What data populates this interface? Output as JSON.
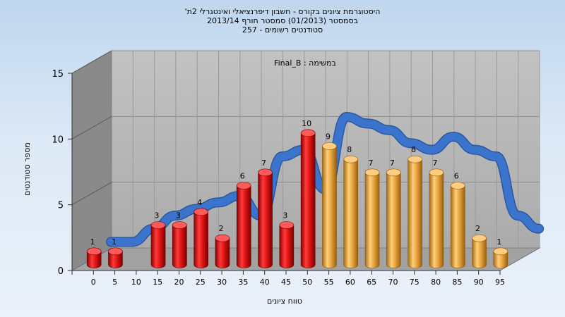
{
  "chart_data": {
    "type": "bar",
    "title_lines": [
      "היסטוגרמת ציונים בקורס - חשבון דיפרנציאלי ואינטגרלי 2ת'",
      "בסמסטר  (01/2013)  סמסטר חורף 2013/14",
      "סטודנטים רשומים - 257"
    ],
    "annotation": "במשימה : Final_B",
    "xlabel": "טווח ציונים",
    "ylabel": "מספר סטודנטים",
    "categories": [
      "0",
      "5",
      "10",
      "15",
      "20",
      "25",
      "30",
      "35",
      "40",
      "45",
      "50",
      "55",
      "60",
      "65",
      "70",
      "75",
      "80",
      "85",
      "90",
      "95"
    ],
    "values": [
      1,
      1,
      0,
      3,
      3,
      4,
      2,
      6,
      7,
      3,
      10,
      9,
      8,
      7,
      7,
      8,
      7,
      6,
      2,
      1
    ],
    "bar_colors": [
      "red",
      "red",
      "red",
      "red",
      "red",
      "red",
      "red",
      "red",
      "red",
      "red",
      "red",
      "orange",
      "orange",
      "orange",
      "orange",
      "orange",
      "orange",
      "orange",
      "orange",
      "orange"
    ],
    "trend_line": [
      1,
      1,
      2,
      3,
      3.5,
      4,
      4.5,
      3,
      7.5,
      8,
      5,
      10.5,
      10,
      9.5,
      8.5,
      8,
      9,
      8,
      7.5,
      3,
      2
    ],
    "yticks": [
      0,
      5,
      10,
      15
    ],
    "ylim": [
      0,
      15
    ],
    "grid": true,
    "colors": {
      "red_bar": "#dd1111",
      "orange_bar": "#e7a33c",
      "trend": "#3a74cc",
      "wall": "#b4b4b4",
      "floor": "#a0a0a0"
    }
  }
}
